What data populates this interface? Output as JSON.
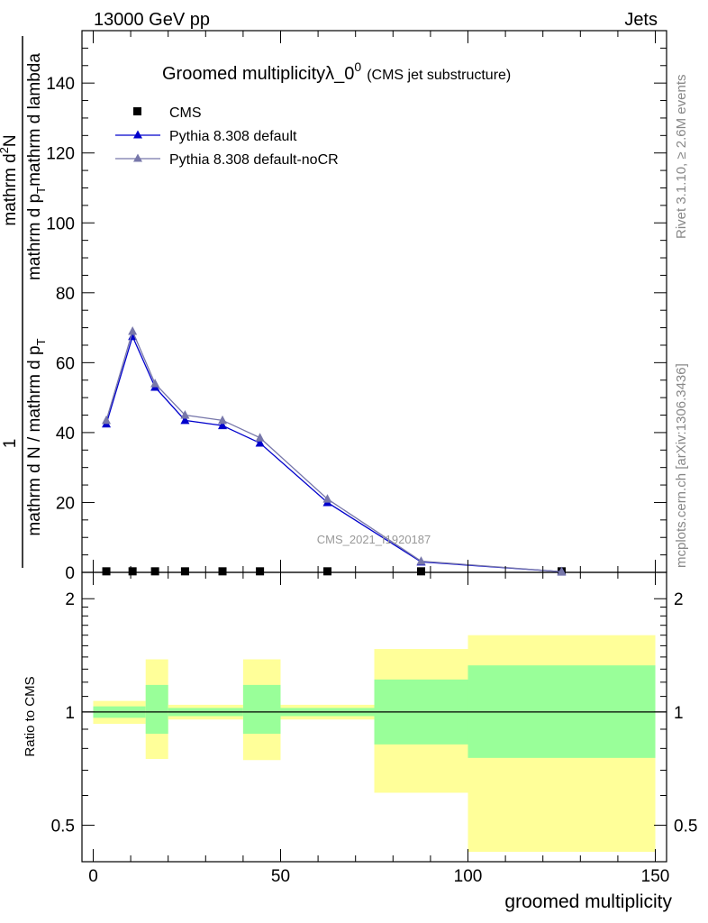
{
  "header": {
    "left": "13000 GeV pp",
    "right": "Jets"
  },
  "side_labels": {
    "rivet": "Rivet 3.1.10, ≥ 2.6M events",
    "mcplots": "mcplots.cern.ch [arXiv:1306.3436]"
  },
  "chart_data": [
    {
      "type": "line",
      "panel": "main",
      "title": "Groomed multiplicityλ_0",
      "title_superscript": "0",
      "subtitle": "(CMS jet substructure)",
      "ylabel_parts": {
        "frac_num": "1",
        "frac_den": "mathrm d N / mathrm d p",
        "frac_den_sub": "T",
        "frac_den_tail": "mathrm d p",
        "frac_den_tail_sub": "T",
        "frac_den_end": "mathrm d lambda",
        "numerator_right": "mathrm d",
        "numerator_right2": "N"
      },
      "ylabel_line1": "1",
      "ylabel_line2": "mathrm d N / mathrm d p",
      "ylabel_line2_sub": "T",
      "ylabel_line3": "mathrm d",
      "ylabel_line3_sup": "2",
      "ylabel_line3_tail": "N",
      "ylabel_line4": "mathrm d p",
      "ylabel_line4_sub": "T",
      "ylabel_line4_tail": "mathrm d lambda",
      "ylim": [
        0,
        155
      ],
      "xlim": [
        -3,
        153
      ],
      "yticks": [
        0,
        20,
        40,
        60,
        80,
        100,
        120,
        140
      ],
      "watermark": "CMS_2021_I1920187",
      "legend_position": "top-left",
      "series": [
        {
          "name": "CMS",
          "marker": "square",
          "color": "#000000",
          "x": [
            3.5,
            10.5,
            16.5,
            24.5,
            34.5,
            44.5,
            62.5,
            87.5,
            125
          ],
          "y": [
            0.3,
            0.3,
            0.3,
            0.3,
            0.3,
            0.3,
            0.3,
            0.3,
            0.3
          ]
        },
        {
          "name": "Pythia 8.308 default",
          "marker": "triangle",
          "color": "#0000cc",
          "x": [
            3.5,
            10.5,
            16.5,
            24.5,
            34.5,
            44.5,
            62.5,
            87.5,
            125
          ],
          "y": [
            42.5,
            67.5,
            53,
            43.5,
            42,
            37,
            20,
            3,
            0.2
          ]
        },
        {
          "name": "Pythia 8.308 default-noCR",
          "marker": "triangle",
          "color": "#7777aa",
          "x": [
            3.5,
            10.5,
            16.5,
            24.5,
            34.5,
            44.5,
            62.5,
            87.5,
            125
          ],
          "y": [
            43.5,
            69,
            54,
            45,
            43.5,
            38.5,
            21,
            3.2,
            0.2
          ]
        }
      ]
    },
    {
      "type": "area",
      "panel": "ratio",
      "ylabel": "Ratio to CMS",
      "ylim": [
        0.4,
        2.35
      ],
      "yticks": [
        0.5,
        1,
        2
      ],
      "ytick_labels": [
        "0.5",
        "1",
        "2"
      ],
      "xlim": [
        -3,
        153
      ],
      "xticks": [
        0,
        50,
        100,
        150
      ],
      "xlabel": "groomed multiplicity",
      "reference_line": 1,
      "bins": [
        {
          "x0": 0,
          "x1": 14,
          "inner": [
            0.965,
            1.035
          ],
          "outer": [
            0.93,
            1.07
          ]
        },
        {
          "x0": 14,
          "x1": 20,
          "inner": [
            0.875,
            1.18
          ],
          "outer": [
            0.75,
            1.38
          ]
        },
        {
          "x0": 20,
          "x1": 40,
          "inner": [
            0.975,
            1.025
          ],
          "outer": [
            0.955,
            1.045
          ]
        },
        {
          "x0": 40,
          "x1": 50,
          "inner": [
            0.875,
            1.18
          ],
          "outer": [
            0.745,
            1.38
          ]
        },
        {
          "x0": 50,
          "x1": 75,
          "inner": [
            0.975,
            1.025
          ],
          "outer": [
            0.955,
            1.045
          ]
        },
        {
          "x0": 75,
          "x1": 100,
          "inner": [
            0.82,
            1.22
          ],
          "outer": [
            0.61,
            1.47
          ]
        },
        {
          "x0": 100,
          "x1": 150,
          "inner": [
            0.755,
            1.33
          ],
          "outer": [
            0.425,
            1.6
          ]
        }
      ],
      "colors": {
        "inner": "#99ff99",
        "outer": "#ffff99"
      }
    }
  ]
}
